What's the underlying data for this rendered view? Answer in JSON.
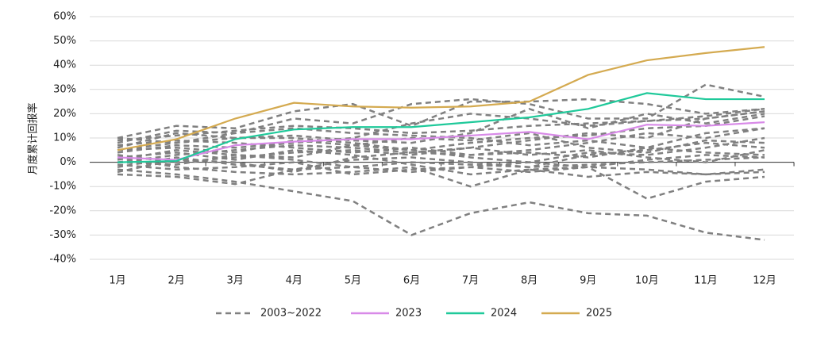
{
  "chart_data": {
    "type": "line",
    "y_label": "月度累计回报率",
    "categories": [
      "1月",
      "2月",
      "3月",
      "4月",
      "5月",
      "6月",
      "7月",
      "8月",
      "9月",
      "10月",
      "11月",
      "12月"
    ],
    "ylim": [
      -40,
      60
    ],
    "yticks": [
      {
        "value": -40,
        "label": "-40%"
      },
      {
        "value": -30,
        "label": "-30%"
      },
      {
        "value": -20,
        "label": "-20%"
      },
      {
        "value": -10,
        "label": "-10%"
      },
      {
        "value": 0,
        "label": "0%"
      },
      {
        "value": 10,
        "label": "10%"
      },
      {
        "value": 20,
        "label": "20%"
      },
      {
        "value": 30,
        "label": "30%"
      },
      {
        "value": 40,
        "label": "40%"
      },
      {
        "value": 50,
        "label": "50%"
      },
      {
        "value": 60,
        "label": "60%"
      }
    ],
    "grid": true,
    "series": [
      {
        "name": "2003~2022",
        "color": "#808080",
        "dashed": true,
        "values": [
          [
            -3,
            -5,
            -8,
            -12,
            -16,
            -30,
            -21,
            -16.5,
            -21,
            -22,
            -29,
            -32
          ],
          [
            10,
            15,
            14,
            21,
            24,
            15,
            25,
            25,
            26,
            24,
            20,
            22
          ],
          [
            8,
            13,
            12,
            18,
            16,
            24,
            26,
            24,
            18,
            18,
            32,
            27
          ],
          [
            5,
            8,
            10,
            10,
            8,
            5,
            2,
            0,
            -2,
            -15,
            -8,
            -6
          ],
          [
            2,
            -2,
            -4,
            -5,
            -4,
            -2,
            -10,
            -3,
            -6,
            -4,
            -5,
            -3
          ],
          [
            -5,
            -6,
            -9,
            -3,
            -2,
            0,
            -1,
            -2,
            -1,
            0,
            1,
            2
          ],
          [
            0,
            3,
            5,
            7,
            6,
            4,
            3,
            5,
            8,
            12,
            10,
            14
          ],
          [
            6,
            12,
            10,
            11,
            9,
            8,
            12,
            22,
            14,
            20,
            16,
            20
          ],
          [
            3,
            0,
            2,
            4,
            5,
            3,
            6,
            9,
            12,
            10,
            18,
            21
          ],
          [
            -2,
            2,
            -1,
            -3,
            1,
            2,
            0,
            -2,
            3,
            5,
            8,
            6
          ],
          [
            1,
            5,
            3,
            2,
            7,
            10,
            9,
            12,
            6,
            4,
            9,
            8
          ],
          [
            4,
            7,
            6,
            8,
            10,
            16,
            20,
            18,
            15,
            17,
            18,
            21
          ],
          [
            -1,
            -3,
            -2,
            0,
            -5,
            -3,
            -2,
            -4,
            -2,
            -3,
            -5,
            -4
          ],
          [
            7,
            9,
            8,
            6,
            4,
            6,
            3,
            4,
            2,
            6,
            12,
            14
          ],
          [
            -4,
            1,
            0,
            -4,
            2,
            4,
            6,
            3,
            5,
            2,
            0,
            5
          ],
          [
            10,
            8,
            12,
            14,
            12,
            11,
            10,
            7,
            9,
            6,
            4,
            3
          ],
          [
            2,
            4,
            1,
            5,
            3,
            -1,
            -5,
            -3,
            -2,
            1,
            3,
            2
          ],
          [
            5,
            6,
            4,
            9,
            7,
            5,
            8,
            10,
            11,
            14,
            15,
            19
          ],
          [
            0,
            -1,
            3,
            1,
            -2,
            -4,
            -2,
            0,
            4,
            3,
            6,
            10
          ],
          [
            9,
            11,
            13,
            15,
            14,
            12,
            13,
            15,
            16,
            17,
            19,
            22
          ]
        ]
      },
      {
        "name": "2023",
        "color": "#d88ae8",
        "values": [
          2,
          1,
          7,
          8.5,
          9.5,
          9.5,
          11,
          12.5,
          9.5,
          15.5,
          15,
          16.5
        ]
      },
      {
        "name": "2024",
        "color": "#1fc99a",
        "values": [
          0,
          0.5,
          9.5,
          13.5,
          14.5,
          14.5,
          16.5,
          18.5,
          22,
          28.5,
          26,
          26
        ]
      },
      {
        "name": "2025",
        "color": "#d4aa50",
        "values": [
          5,
          9.5,
          18,
          24.5,
          23,
          22.5,
          23,
          25,
          36,
          42,
          45,
          47.5
        ]
      }
    ]
  }
}
